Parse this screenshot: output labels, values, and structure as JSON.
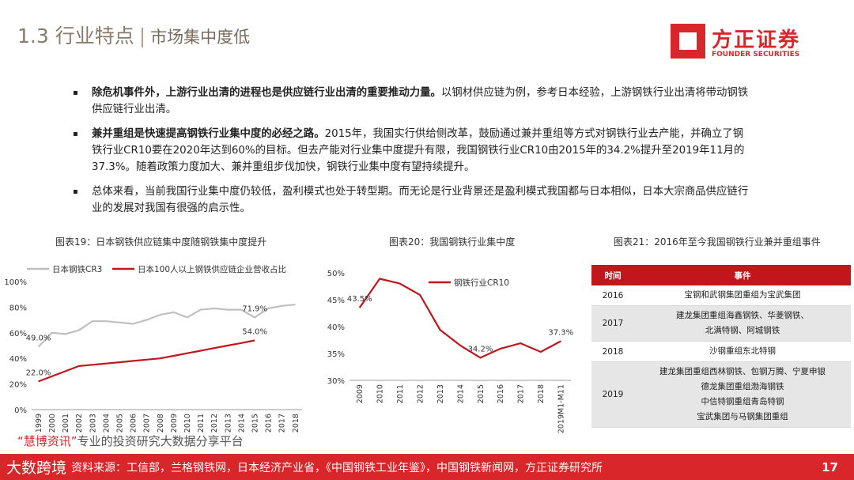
{
  "header": {
    "section": "1.3 行业特点",
    "separator": "|",
    "subtitle": "市场集中度低",
    "logo_cn": "方正证券",
    "logo_en": "FOUNDER SECURITIES"
  },
  "bullets": [
    {
      "marker": "▪",
      "bold": "除危机事件外，上游行业出清的进程也是供应链行业出清的重要推动力量。",
      "text": "以钢材供应链为例，参考日本经验，上游钢铁行业出清将带动钢铁供应链行业出清。"
    },
    {
      "marker": "▪",
      "bold": "兼并重组是快速提高钢铁行业集中度的必经之路。",
      "text": "2015年，我国实行供给侧改革，鼓励通过兼并重组等方式对钢铁行业去产能，并确立了钢铁行业CR10要在2020年达到60%的目标。但去产能对行业集中度提升有限，我国钢铁行业CR10由2015年的34.2%提升至2019年11月的37.3%。随着政策力度加大、兼并重组步伐加快，钢铁行业集中度有望持续提升。"
    },
    {
      "marker": "▪",
      "bold": "",
      "text": "总体来看，当前我国行业集中度仍较低，盈利模式也处于转型期。而无论是行业背景还是盈利模式我国都与日本相似，日本大宗商品供应链行业的发展对我国有很强的启示性。"
    }
  ],
  "captions": {
    "fig19": "图表19：日本钢铁供应链集中度随钢铁集中度提升",
    "fig20": "图表20：我国钢铁行业集中度",
    "fig21": "图表21：2016年至今我国钢铁行业兼并重组事件"
  },
  "colors": {
    "accent": "#d9262b",
    "cr3_line": "#bfbfbf",
    "dark_red": "#c0161c"
  },
  "chart_data": [
    {
      "type": "line",
      "x": [
        "1999",
        "2000",
        "2001",
        "2002",
        "2003",
        "2004",
        "2005",
        "2006",
        "2007",
        "2008",
        "2009",
        "2010",
        "2011",
        "2012",
        "2013",
        "2014",
        "2015",
        "2016",
        "2017",
        "2018"
      ],
      "ylim": [
        0,
        100
      ],
      "yticks": [
        "0%",
        "20%",
        "40%",
        "60%",
        "80%",
        "100%"
      ],
      "series": [
        {
          "name": "日本钢铁CR3",
          "color": "#bfbfbf",
          "values": [
            49.0,
            60,
            59,
            62,
            69,
            69,
            68,
            67,
            70,
            74,
            76,
            72,
            78,
            79,
            78,
            78,
            71.9,
            79,
            81,
            82
          ]
        },
        {
          "name": "日本100人以上钢铁供应链企业营收占比",
          "color": "#c0161c",
          "values": [
            22.0,
            26,
            30,
            34,
            35,
            36,
            37,
            38,
            39,
            40,
            42,
            44,
            46,
            48,
            50,
            52,
            54.0,
            null,
            null,
            null
          ]
        }
      ],
      "data_labels": [
        {
          "series": 0,
          "index": 0,
          "text": "49.0%"
        },
        {
          "series": 0,
          "index": 16,
          "text": "71.9%"
        },
        {
          "series": 1,
          "index": 0,
          "text": "22.0%"
        },
        {
          "series": 1,
          "index": 16,
          "text": "54.0%"
        }
      ]
    },
    {
      "type": "line",
      "x": [
        "2009",
        "2010",
        "2011",
        "2012",
        "2013",
        "2014",
        "2015",
        "2016",
        "2017",
        "2018",
        "2019M1-M11"
      ],
      "ylim": [
        30,
        50
      ],
      "yticks": [
        "30%",
        "35%",
        "40%",
        "45%",
        "50%"
      ],
      "series": [
        {
          "name": "钢铁行业CR10",
          "color": "#c0161c",
          "values": [
            43.5,
            48.9,
            48.0,
            45.9,
            39.4,
            36.5,
            34.2,
            35.9,
            36.9,
            35.3,
            37.3
          ]
        }
      ],
      "data_labels": [
        {
          "series": 0,
          "index": 0,
          "text": "43.5%"
        },
        {
          "series": 0,
          "index": 6,
          "text": "34.2%"
        },
        {
          "series": 0,
          "index": 10,
          "text": "37.3%"
        }
      ]
    }
  ],
  "table": {
    "headers": [
      "时间",
      "事件"
    ],
    "rows": [
      {
        "year": "2016",
        "events": [
          "宝钢和武钢集团重组为宝武集团"
        ]
      },
      {
        "year": "2017",
        "events": [
          "建龙集团重组海鑫钢铁、华菱钢铁、",
          "北满特钢、阿城钢铁"
        ]
      },
      {
        "year": "2018",
        "events": [
          "沙钢重组东北特钢"
        ]
      },
      {
        "year": "2019",
        "events": [
          "建龙集团重组西林钢铁、包钢万腾、宁夏申银",
          "德龙集团重组渤海钢铁",
          "中信特钢重组青岛特钢",
          "宝武集团与马钢集团重组"
        ]
      }
    ]
  },
  "watermark": {
    "quote_open": "“",
    "name": "慧博资讯",
    "quote_close": "”",
    "text": "专业的投资研究大数据分享平台"
  },
  "footer": {
    "brand": "大数跨境",
    "source": "资料来源：工信部，兰格钢铁网，日本经济产业省，《中国钢铁工业年鉴》，中国钢铁新闻网，方正证券研究所",
    "page": "17"
  }
}
